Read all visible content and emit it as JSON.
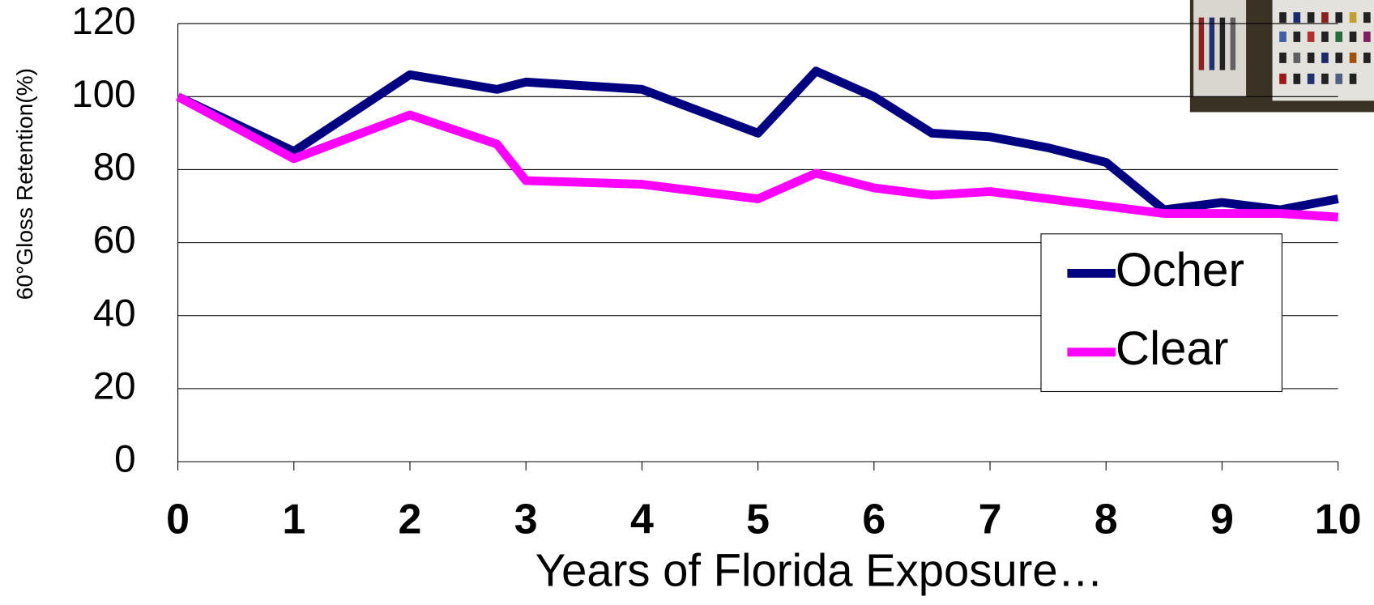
{
  "chart_data": {
    "type": "line",
    "x_label": "Years of Florida Exposure…",
    "y_label": "60°Gloss Retention(%)",
    "x": [
      0,
      1,
      2,
      2.75,
      3,
      4,
      5,
      5.5,
      6,
      6.5,
      7,
      7.5,
      8,
      8.5,
      9,
      9.5,
      10
    ],
    "series": [
      {
        "name": "Ocher",
        "color": "#000080",
        "values": [
          100,
          85,
          106,
          102,
          104,
          102,
          90,
          107,
          100,
          90,
          89,
          86,
          82,
          69,
          71,
          69,
          72
        ]
      },
      {
        "name": "Clear",
        "color": "#ff00ff",
        "values": [
          100,
          83,
          95,
          87,
          77,
          76,
          72,
          79,
          75,
          73,
          74,
          72,
          70,
          68,
          68,
          68,
          67
        ]
      }
    ],
    "xlim": [
      0,
      10
    ],
    "xticks": [
      0,
      1,
      2,
      3,
      4,
      5,
      6,
      7,
      8,
      9,
      10
    ],
    "ylim": [
      0,
      120
    ],
    "yticks": [
      0,
      20,
      40,
      60,
      80,
      100,
      120
    ],
    "grid": true,
    "legend": "right"
  }
}
